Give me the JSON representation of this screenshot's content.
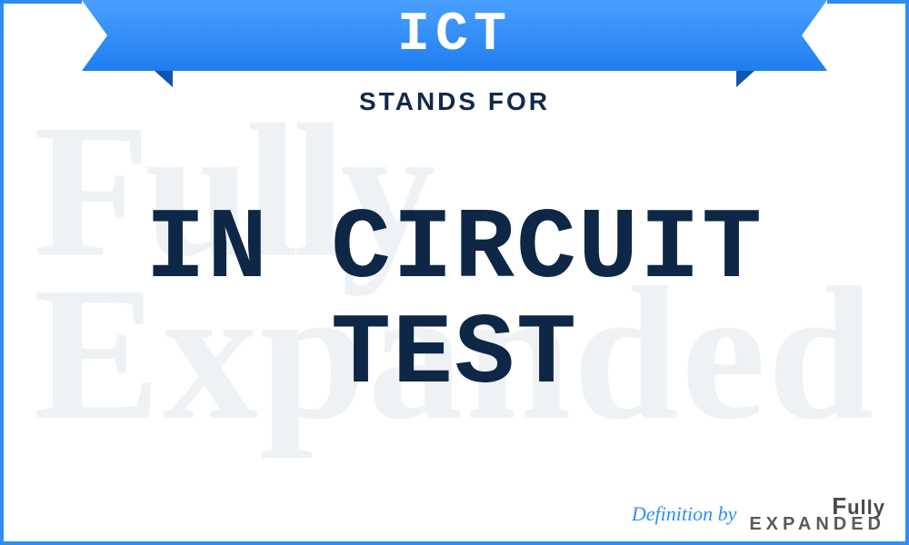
{
  "colors": {
    "frame_border": "#2e8df7",
    "background": "#ffffff",
    "watermark": "#eef2f5",
    "banner_gradient_top": "#4aa0ff",
    "banner_gradient_bottom": "#1f7df0",
    "banner_fold": "#0d56b0",
    "abbrev_text": "#ffffff",
    "stands_for_text": "#122a4a",
    "definition_text": "#0e2746",
    "def_by_text": "#2e8df7",
    "logo_text": "#4a4a4a"
  },
  "typography": {
    "abbrev_fontsize": 60,
    "stands_for_fontsize": 28,
    "definition_fontsize": 110,
    "def_by_fontsize": 22,
    "watermark_fontsize": 210
  },
  "abbrev": "ICT",
  "stands_for_label": "STANDS FOR",
  "definition_line1": "IN CIRCUIT",
  "definition_line2": "TEST",
  "watermark_line1": "Fully",
  "watermark_line2": "Expanded",
  "footer": {
    "def_by": "Definition by",
    "logo_line1": "Fully",
    "logo_line2": "EXPANDED"
  }
}
